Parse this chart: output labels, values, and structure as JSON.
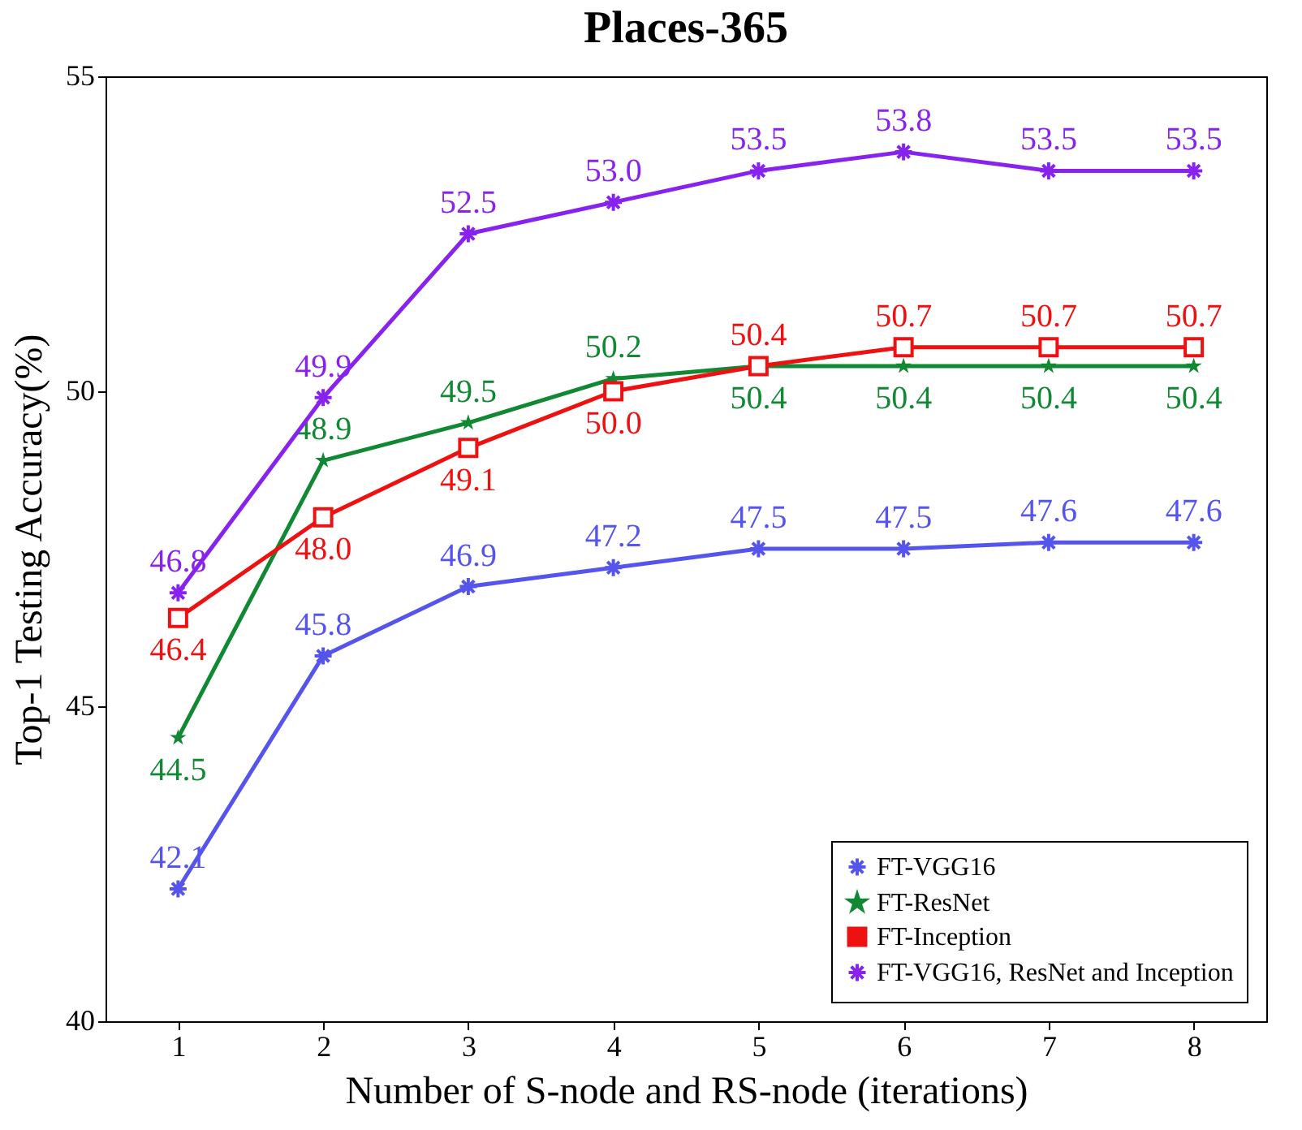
{
  "chart_data": {
    "type": "line",
    "title": "Places-365",
    "xlabel": "Number of S-node and RS-node (iterations)",
    "ylabel": "Top-1 Testing Accuracy(%)",
    "x": [
      1,
      2,
      3,
      4,
      5,
      6,
      7,
      8
    ],
    "xlim": [
      0.5,
      8.5
    ],
    "xticks": [
      1,
      2,
      3,
      4,
      5,
      6,
      7,
      8
    ],
    "ylim": [
      40,
      55
    ],
    "yticks": [
      40,
      45,
      50,
      55
    ],
    "series": [
      {
        "name": "FT-VGG16",
        "color": "#5555ee",
        "marker": "cross",
        "values": [
          42.1,
          45.8,
          46.9,
          47.2,
          47.5,
          47.5,
          47.6,
          47.6
        ],
        "value_labels": [
          "42.1",
          "45.8",
          "46.9",
          "47.2",
          "47.5",
          "47.5",
          "47.6",
          "47.6"
        ]
      },
      {
        "name": "FT-ResNet",
        "color": "#118833",
        "marker": "star",
        "values": [
          44.5,
          48.9,
          49.5,
          50.2,
          50.4,
          50.4,
          50.4,
          50.4
        ],
        "value_labels": [
          "44.5",
          "48.9",
          "49.5",
          "50.2",
          "50.4",
          "50.4",
          "50.4",
          "50.4"
        ]
      },
      {
        "name": "FT-Inception",
        "color": "#ee1111",
        "marker": "square",
        "values": [
          46.4,
          48.0,
          49.1,
          50.0,
          50.4,
          50.7,
          50.7,
          50.7
        ],
        "value_labels": [
          "46.4",
          "48.0",
          "49.1",
          "50.0",
          "50.4",
          "50.7",
          "50.7",
          "50.7"
        ]
      },
      {
        "name": "FT-VGG16, ResNet and Inception",
        "color": "#8822ee",
        "marker": "cross",
        "values": [
          46.8,
          49.9,
          52.5,
          53.0,
          53.5,
          53.8,
          53.5,
          53.5
        ],
        "value_labels": [
          "46.8",
          "49.9",
          "52.5",
          "53.0",
          "53.5",
          "53.8",
          "53.5",
          "53.5"
        ]
      }
    ],
    "legend": "bottom right",
    "grid": false,
    "line_style": "solid"
  }
}
